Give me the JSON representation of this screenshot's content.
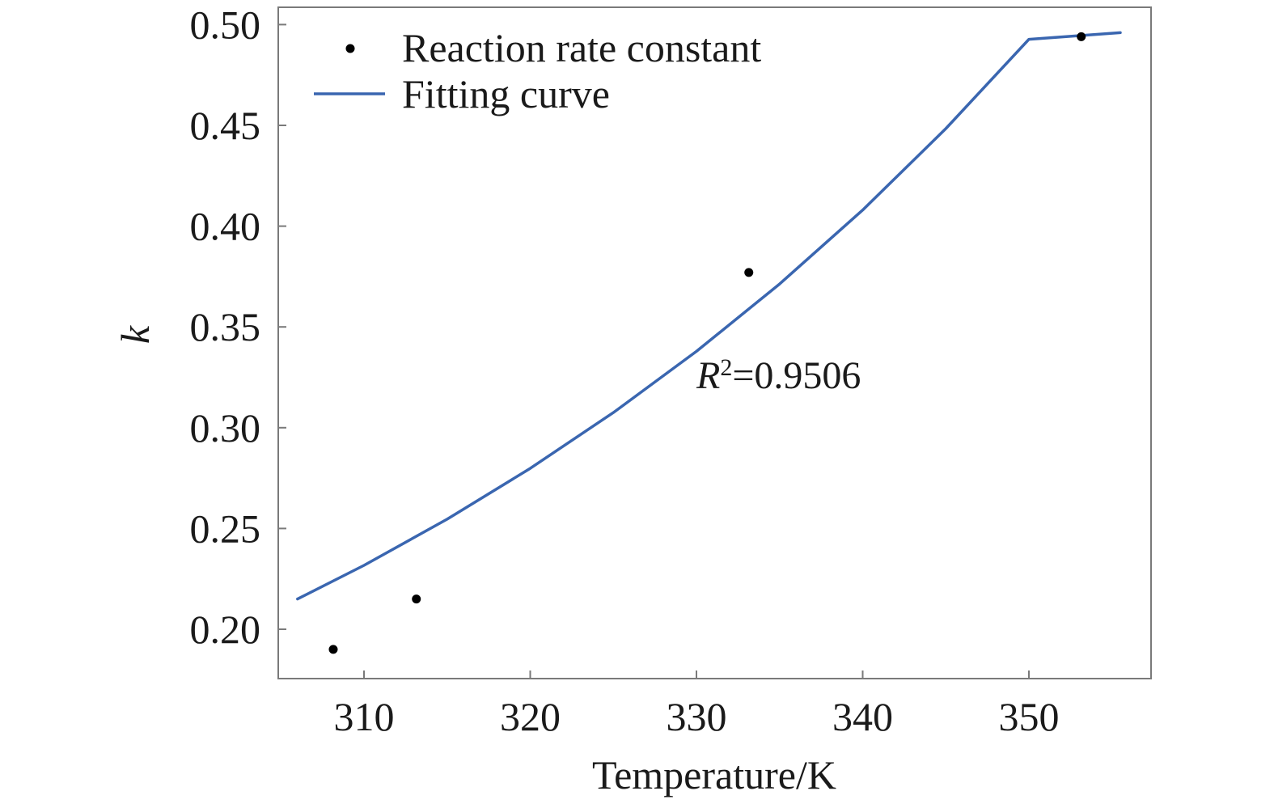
{
  "chart_data": {
    "type": "scatter",
    "xlabel": "Temperature/K",
    "ylabel": "k",
    "xlim": [
      305,
      356
    ],
    "ylim": [
      0.185,
      0.51
    ],
    "xticks": [
      310,
      320,
      330,
      340,
      350
    ],
    "xtick_labels": [
      "310",
      "320",
      "330",
      "340",
      "350"
    ],
    "yticks": [
      0.2,
      0.25,
      0.3,
      0.35,
      0.4,
      0.45,
      0.5
    ],
    "ytick_labels": [
      "0.20",
      "0.25",
      "0.30",
      "0.35",
      "0.40",
      "0.45",
      "0.50"
    ],
    "grid": false,
    "legend_position": "top-left",
    "series": [
      {
        "name": "Reaction rate constant",
        "kind": "scatter",
        "color": "#000000",
        "x": [
          308.15,
          313.15,
          333.15,
          353.15
        ],
        "y": [
          0.19,
          0.215,
          0.377,
          0.494
        ]
      },
      {
        "name": "Fitting curve",
        "kind": "line",
        "color": "#3a66b0",
        "x": [
          306,
          310,
          315,
          320,
          325,
          330,
          335,
          340,
          345,
          350,
          355.5
        ],
        "y": [
          0.215,
          0.2317,
          0.2546,
          0.2798,
          0.3075,
          0.3379,
          0.3713,
          0.408,
          0.4484,
          0.4927,
          0.496
        ]
      }
    ],
    "annotation": {
      "label_italic": "R",
      "superscript": "2",
      "value_text": "=0.9506",
      "x": 330,
      "y": 0.3195
    }
  }
}
